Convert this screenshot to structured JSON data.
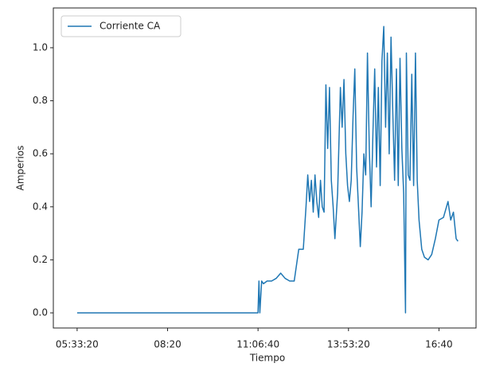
{
  "chart_data": {
    "type": "line",
    "xlabel": "Tiempo",
    "ylabel": "Amperios",
    "x": [
      20000,
      40000,
      40100,
      40200,
      40400,
      40600,
      41000,
      41500,
      42000,
      42500,
      43000,
      43500,
      44000,
      44500,
      45000,
      45300,
      45500,
      45700,
      45900,
      46100,
      46300,
      46500,
      46700,
      46900,
      47100,
      47300,
      47500,
      47700,
      47900,
      48100,
      48300,
      48500,
      48800,
      49100,
      49300,
      49500,
      49700,
      49900,
      50100,
      50300,
      50500,
      50700,
      50900,
      51100,
      51300,
      51500,
      51700,
      51900,
      52100,
      52300,
      52500,
      52700,
      52900,
      53100,
      53300,
      53500,
      53700,
      53900,
      54100,
      54300,
      54500,
      54700,
      54900,
      55100,
      55300,
      55500,
      55700,
      55900,
      56100,
      56300,
      56400,
      56600,
      56800,
      57000,
      57200,
      57400,
      57600,
      57800,
      58100,
      58400,
      58800,
      59200,
      59600,
      60000,
      60500,
      61000,
      61300,
      61600,
      61900,
      62100
    ],
    "series": [
      {
        "name": "Corriente CA",
        "color": "#1f77b4",
        "values": [
          0,
          0,
          0.12,
          0,
          0.12,
          0.11,
          0.12,
          0.12,
          0.13,
          0.15,
          0.13,
          0.12,
          0.12,
          0.24,
          0.24,
          0.4,
          0.52,
          0.42,
          0.5,
          0.38,
          0.52,
          0.42,
          0.36,
          0.5,
          0.4,
          0.38,
          0.86,
          0.62,
          0.85,
          0.5,
          0.4,
          0.28,
          0.45,
          0.85,
          0.7,
          0.88,
          0.6,
          0.48,
          0.42,
          0.5,
          0.74,
          0.92,
          0.55,
          0.4,
          0.25,
          0.38,
          0.6,
          0.52,
          0.98,
          0.62,
          0.4,
          0.68,
          0.92,
          0.55,
          0.85,
          0.48,
          0.95,
          1.08,
          0.7,
          0.98,
          0.6,
          1.04,
          0.75,
          0.5,
          0.92,
          0.48,
          0.96,
          0.62,
          0.45,
          0.0,
          0.98,
          0.52,
          0.5,
          0.9,
          0.48,
          0.98,
          0.5,
          0.35,
          0.24,
          0.21,
          0.2,
          0.22,
          0.28,
          0.35,
          0.36,
          0.42,
          0.35,
          0.38,
          0.28,
          0.27
        ]
      }
    ],
    "xlim": [
      17370,
      64100
    ],
    "xticks": [
      {
        "value": 20000,
        "label": "05:33:20"
      },
      {
        "value": 30000,
        "label": "08:20"
      },
      {
        "value": 40000,
        "label": "11:06:40"
      },
      {
        "value": 50000,
        "label": "13:53:20"
      },
      {
        "value": 60000,
        "label": "16:40"
      }
    ],
    "ylim": [
      -0.057,
      1.15
    ],
    "yticks": [
      {
        "value": 0,
        "label": "0.0"
      },
      {
        "value": 0.2,
        "label": "0.2"
      },
      {
        "value": 0.4,
        "label": "0.4"
      },
      {
        "value": 0.6,
        "label": "0.6"
      },
      {
        "value": 0.8,
        "label": "0.8"
      },
      {
        "value": 1,
        "label": "1.0"
      }
    ],
    "legend": "upper left"
  }
}
